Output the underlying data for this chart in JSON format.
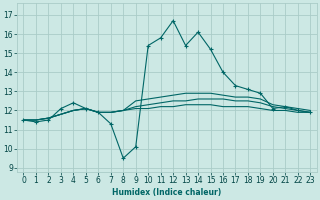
{
  "xlabel": "Humidex (Indice chaleur)",
  "bg_color": "#cce8e4",
  "line_color": "#006666",
  "grid_color": "#aaccc8",
  "xlim": [
    -0.5,
    23.5
  ],
  "ylim": [
    8.8,
    17.6
  ],
  "yticks": [
    9,
    10,
    11,
    12,
    13,
    14,
    15,
    16,
    17
  ],
  "xticks": [
    0,
    1,
    2,
    3,
    4,
    5,
    6,
    7,
    8,
    9,
    10,
    11,
    12,
    13,
    14,
    15,
    16,
    17,
    18,
    19,
    20,
    21,
    22,
    23
  ],
  "xtick_labels": [
    "0",
    "1",
    "2",
    "3",
    "4",
    "5",
    "6",
    "7",
    "8",
    "9",
    "10",
    "11",
    "12",
    "13",
    "14",
    "15",
    "16",
    "17",
    "18",
    "19",
    "20",
    "21",
    "22",
    "23"
  ],
  "series_main": [
    11.5,
    11.4,
    11.5,
    12.1,
    12.4,
    12.1,
    11.9,
    11.3,
    9.5,
    10.1,
    15.4,
    15.8,
    16.7,
    15.4,
    16.1,
    15.2,
    14.0,
    13.3,
    13.1,
    12.9,
    12.1,
    12.2,
    12.0,
    11.9
  ],
  "series_line1": [
    11.5,
    11.5,
    11.6,
    11.8,
    12.0,
    12.1,
    11.9,
    11.9,
    12.0,
    12.5,
    12.6,
    12.7,
    12.8,
    12.9,
    12.9,
    12.9,
    12.8,
    12.7,
    12.7,
    12.6,
    12.3,
    12.2,
    12.1,
    12.0
  ],
  "series_line2": [
    11.5,
    11.5,
    11.6,
    11.8,
    12.0,
    12.1,
    11.9,
    11.9,
    12.0,
    12.2,
    12.3,
    12.4,
    12.5,
    12.5,
    12.6,
    12.6,
    12.6,
    12.5,
    12.5,
    12.4,
    12.2,
    12.1,
    12.0,
    11.9
  ],
  "series_line3": [
    11.5,
    11.5,
    11.6,
    11.8,
    12.0,
    12.1,
    11.9,
    11.9,
    12.0,
    12.1,
    12.1,
    12.2,
    12.2,
    12.3,
    12.3,
    12.3,
    12.2,
    12.2,
    12.2,
    12.1,
    12.0,
    12.0,
    11.9,
    11.9
  ]
}
